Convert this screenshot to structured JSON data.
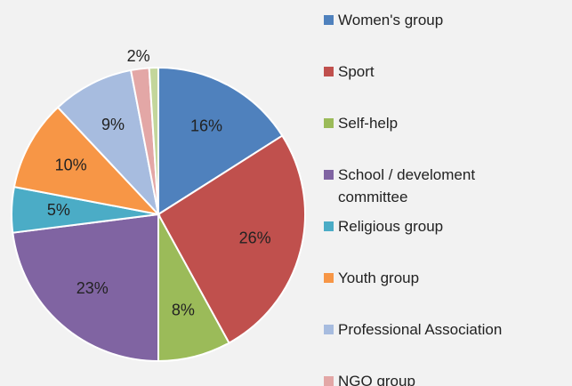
{
  "chart_data": {
    "type": "pie",
    "categories": [
      "Women's group",
      "Sport",
      "Self-help",
      "School / develoment committee",
      "Religious group",
      "Youth group",
      "Professional Association",
      "NGO group",
      null
    ],
    "values": [
      16,
      26,
      8,
      23,
      5,
      10,
      9,
      2,
      1
    ],
    "value_labels": [
      "16%",
      "26%",
      "8%",
      "23%",
      "5%",
      "10%",
      "9%",
      "2%",
      null
    ],
    "colors": [
      "#4f81bd",
      "#c0504d",
      "#9bbb59",
      "#8064a2",
      "#4bacc6",
      "#f79646",
      "#a7bcdf",
      "#e3a7a6",
      "#c3d69b"
    ],
    "legend": "right"
  }
}
